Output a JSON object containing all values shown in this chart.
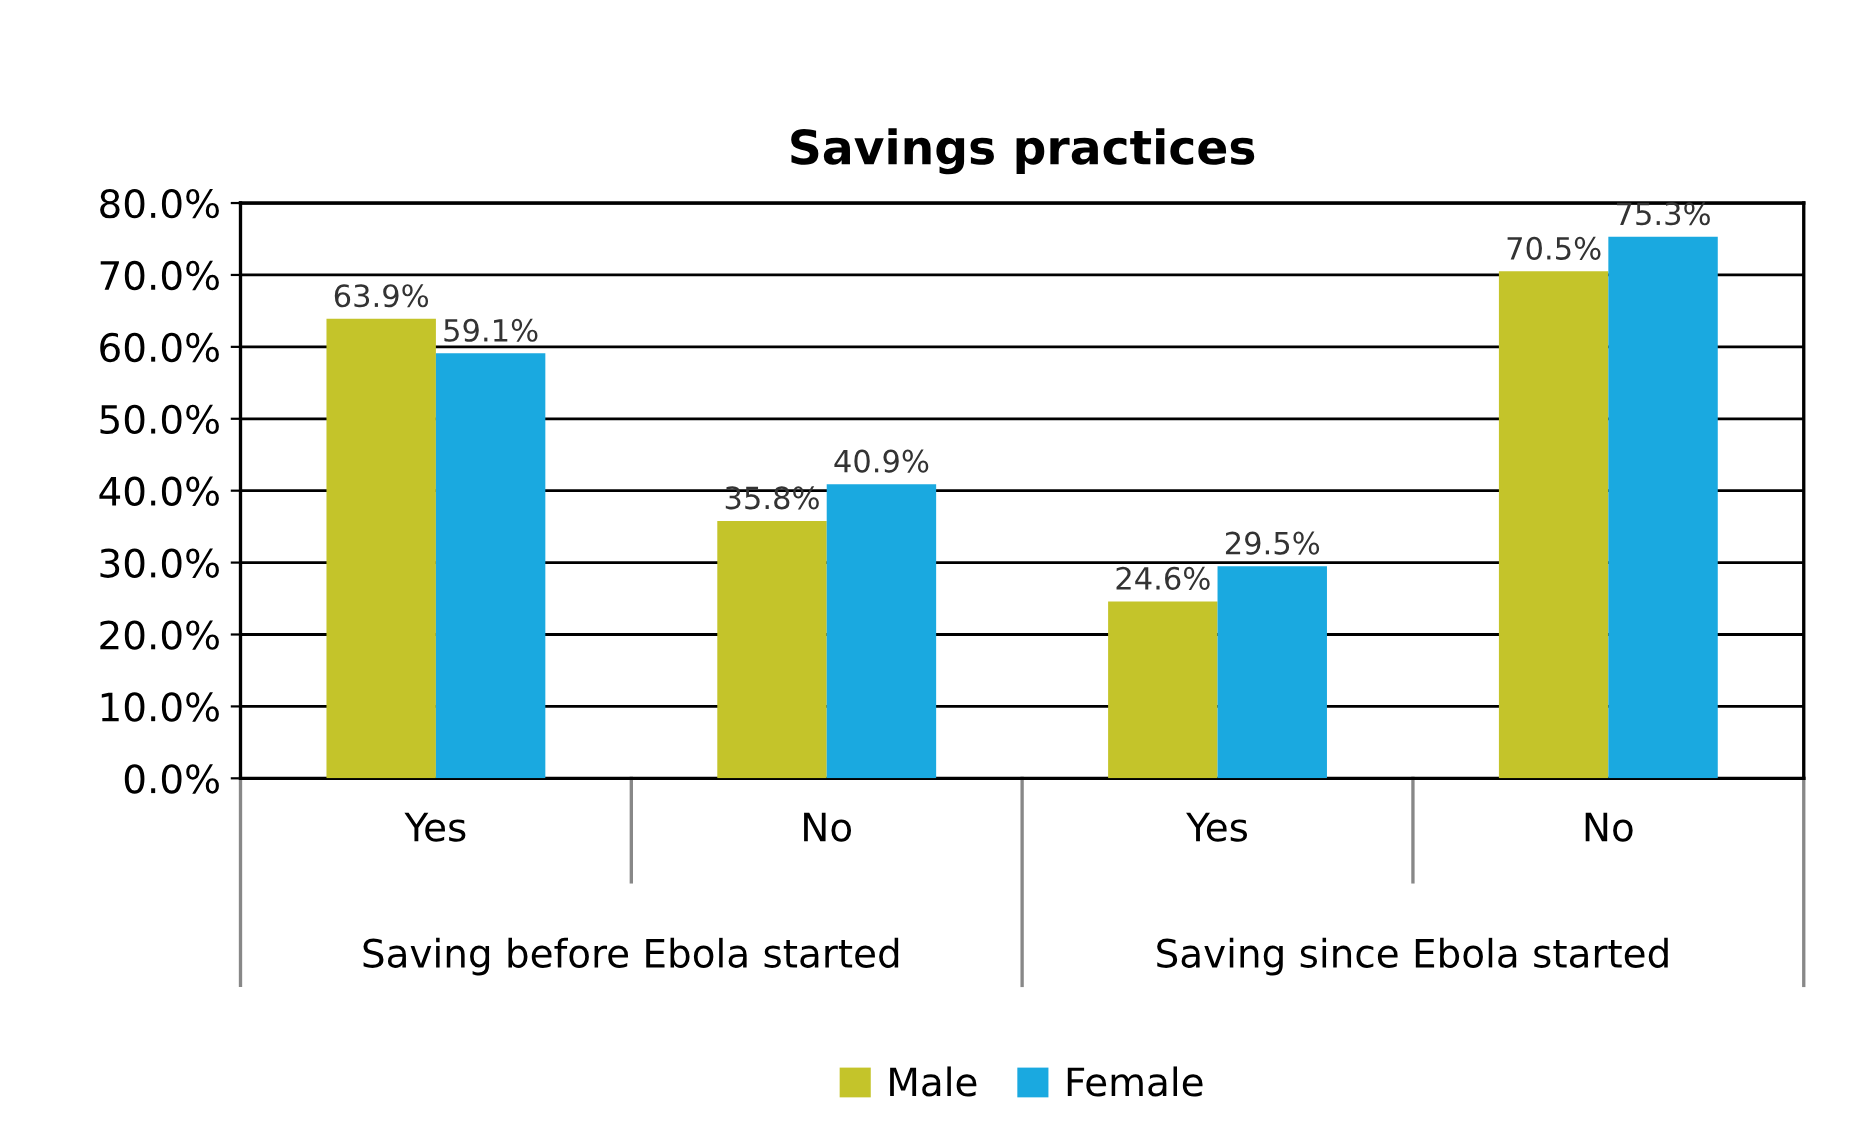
{
  "chart_data": {
    "type": "bar",
    "title": "Savings practices",
    "categories": [
      "Yes",
      "No",
      "Yes",
      "No"
    ],
    "annotations": [
      "Saving before Ebola started",
      "Saving since Ebola started"
    ],
    "series": [
      {
        "name": "Male",
        "color": "#c4c42a",
        "values": [
          63.9,
          35.8,
          24.6,
          70.5
        ],
        "value_labels": [
          "63.9%",
          "35.8%",
          "24.6%",
          "70.5%"
        ]
      },
      {
        "name": "Female",
        "color": "#1aa9e0",
        "values": [
          59.1,
          40.9,
          29.5,
          75.3
        ],
        "value_labels": [
          "59.1%",
          "40.9%",
          "29.5%",
          "75.3%"
        ]
      }
    ],
    "ylim": [
      0,
      80
    ],
    "yticks": [
      {
        "value": 0,
        "label": "0.0%"
      },
      {
        "value": 10,
        "label": "10.0%"
      },
      {
        "value": 20,
        "label": "20.0%"
      },
      {
        "value": 30,
        "label": "30.0%"
      },
      {
        "value": 40,
        "label": "40.0%"
      },
      {
        "value": 50,
        "label": "50.0%"
      },
      {
        "value": 60,
        "label": "60.0%"
      },
      {
        "value": 70,
        "label": "70.0%"
      },
      {
        "value": 80,
        "label": "80.0%"
      }
    ],
    "grid": "y",
    "legend": "bottom"
  }
}
